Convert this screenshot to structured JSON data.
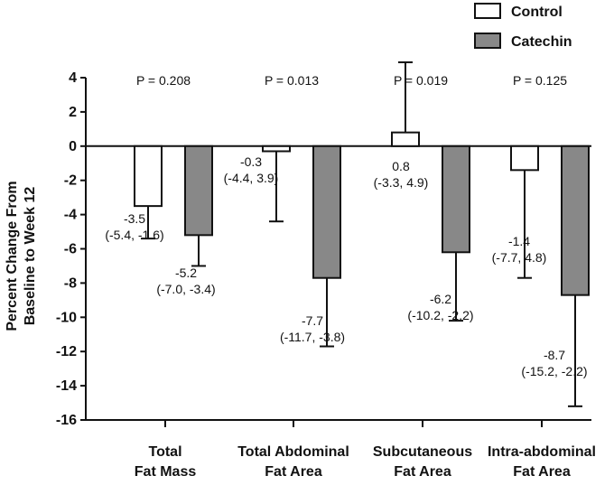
{
  "chart_data": {
    "type": "bar",
    "title": "",
    "xlabel": "",
    "ylabel": [
      "Percent Change From",
      "Baseline to Week 12"
    ],
    "ylim": [
      -16,
      4
    ],
    "yticks": [
      4,
      2,
      0,
      -2,
      -4,
      -6,
      -8,
      -10,
      -12,
      -14,
      -16
    ],
    "legend_position": "top-right",
    "categories": [
      [
        "Total",
        "Fat Mass"
      ],
      [
        "Total Abdominal",
        "Fat Area"
      ],
      [
        "Subcutaneous",
        "Fat Area"
      ],
      [
        "Intra-abdominal",
        "Fat Area"
      ]
    ],
    "p_values": [
      "P = 0.208",
      "P = 0.013",
      "P = 0.019",
      "P = 0.125"
    ],
    "series": [
      {
        "name": "Control",
        "color": "#ffffff",
        "values": [
          -3.5,
          -0.3,
          0.8,
          -1.4
        ],
        "ci": [
          [
            -5.4,
            -1.6
          ],
          [
            -4.4,
            3.9
          ],
          [
            -3.3,
            4.9
          ],
          [
            -7.7,
            4.8
          ]
        ],
        "labels": [
          [
            "-3.5",
            "(-5.4, -1.6)"
          ],
          [
            "-0.3",
            "(-4.4, 3.9)"
          ],
          [
            "0.8",
            "(-3.3, 4.9)"
          ],
          [
            "-1.4",
            "(-7.7, 4.8)"
          ]
        ]
      },
      {
        "name": "Catechin",
        "color": "#888888",
        "values": [
          -5.2,
          -7.7,
          -6.2,
          -8.7
        ],
        "ci": [
          [
            -7.0,
            -3.4
          ],
          [
            -11.7,
            -3.8
          ],
          [
            -10.2,
            -2.2
          ],
          [
            -15.2,
            -2.2
          ]
        ],
        "labels": [
          [
            "-5.2",
            "(-7.0, -3.4)"
          ],
          [
            "-7.7",
            "(-11.7, -3.8)"
          ],
          [
            "-6.2",
            "(-10.2, -2.2)"
          ],
          [
            "-8.7",
            "(-15.2, -2.2)"
          ]
        ]
      }
    ]
  }
}
